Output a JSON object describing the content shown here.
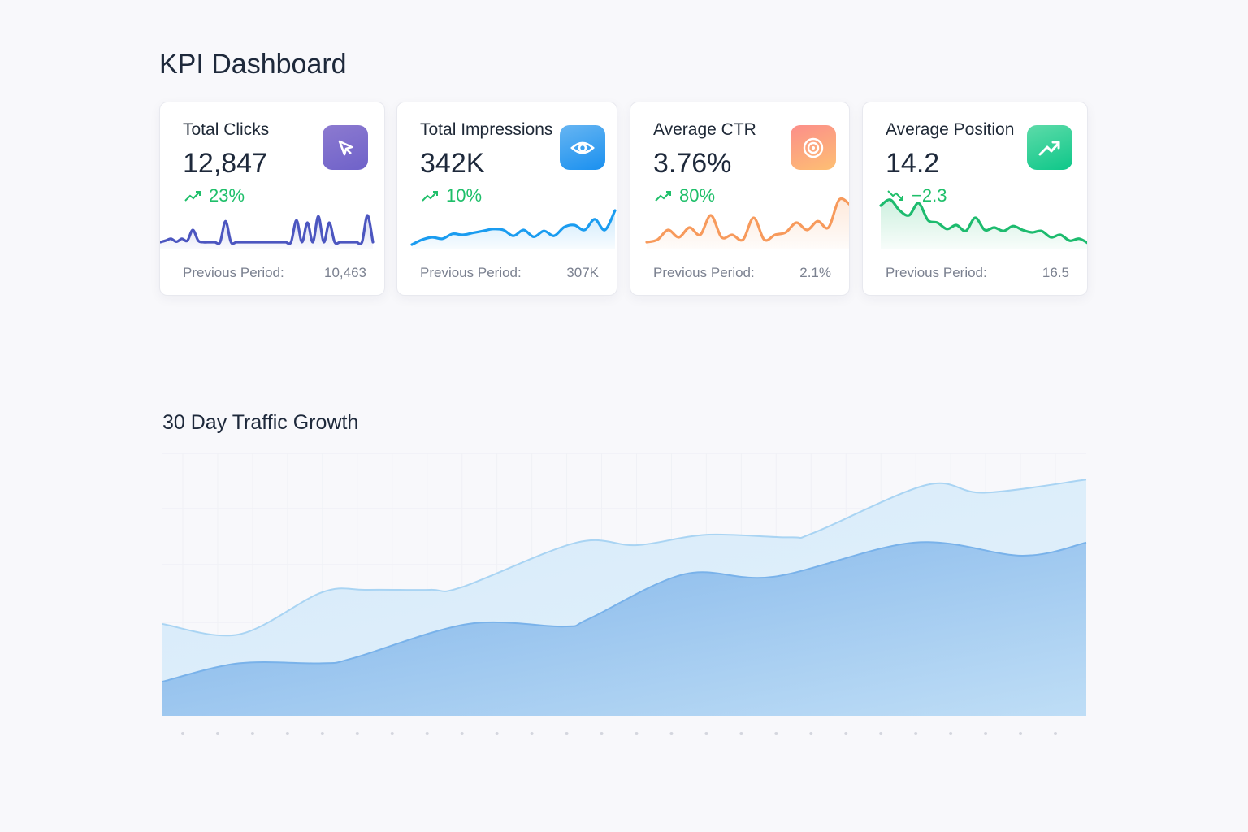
{
  "header": {
    "title": "KPI Dashboard"
  },
  "cards": [
    {
      "label": "Total Clicks",
      "value": "12,847",
      "change": "23%",
      "trend": "up",
      "prev_label": "Previous Period:",
      "prev_value": "10,463",
      "icon": "cursor-icon",
      "color": "#7b6cd0",
      "line": "#4c56c0",
      "spark": [
        5,
        8,
        12,
        6,
        12,
        8,
        30,
        8,
        5,
        5,
        5,
        5,
        48,
        5,
        5,
        5,
        5,
        5,
        5,
        5,
        5,
        5,
        5,
        5,
        5,
        50,
        5,
        45,
        5,
        58,
        5,
        45,
        5,
        5,
        5,
        5,
        5,
        5,
        60,
        5
      ]
    },
    {
      "label": "Total Impressions",
      "value": "342K",
      "change": "10%",
      "trend": "up",
      "prev_label": "Previous Period:",
      "prev_value": "307K",
      "icon": "eye-icon",
      "color": "#3a9ef0",
      "line": "#1a9cf0",
      "spark": [
        0,
        10,
        15,
        12,
        22,
        20,
        24,
        28,
        32,
        30,
        18,
        30,
        16,
        28,
        18,
        36,
        40,
        30,
        52,
        30,
        70
      ]
    },
    {
      "label": "Average CTR",
      "value": "3.76%",
      "change": "80%",
      "trend": "up",
      "prev_label": "Previous Period:",
      "prev_value": "2.1%",
      "icon": "target-icon",
      "color": "#fb9a73",
      "line": "#f79a5c",
      "spark": [
        5,
        10,
        30,
        15,
        35,
        20,
        60,
        15,
        20,
        10,
        55,
        10,
        20,
        25,
        45,
        30,
        48,
        35,
        92,
        82
      ]
    },
    {
      "label": "Average Position",
      "value": "14.2",
      "change": "−2.3",
      "trend": "down",
      "prev_label": "Previous Period:",
      "prev_value": "16.5",
      "icon": "trending-up-icon",
      "color": "#22c98f",
      "line": "#1dbb6e",
      "spark": [
        80,
        92,
        70,
        60,
        85,
        50,
        45,
        32,
        40,
        28,
        55,
        30,
        35,
        28,
        38,
        30,
        25,
        28,
        15,
        20,
        8,
        12,
        2
      ]
    }
  ],
  "chart_data": {
    "type": "area",
    "title": "30 Day Traffic Growth",
    "xlabel": "",
    "ylabel": "",
    "grid": true,
    "series": [
      {
        "x": [
          1,
          3.4,
          6,
          7.4,
          9.4,
          10.4,
          14,
          15.9,
          18.1,
          20.7,
          21.5,
          25,
          26.8,
          30
        ],
        "values": [
          35,
          31,
          47,
          48,
          48,
          49,
          66,
          65,
          69,
          68,
          70,
          88,
          85,
          90
        ],
        "color": "#bfe0f7"
      },
      {
        "x": [
          1,
          3.4,
          6,
          7,
          10.6,
          13.6,
          14.4,
          17.4,
          20.2,
          24.6,
          28,
          30
        ],
        "values": [
          13,
          20,
          20,
          22,
          35,
          34,
          37,
          54,
          53,
          66,
          61,
          66
        ],
        "color": "#6aa9e8"
      }
    ],
    "xlim": [
      1,
      30
    ],
    "ylim": [
      0,
      100
    ],
    "tick_count": 26
  }
}
